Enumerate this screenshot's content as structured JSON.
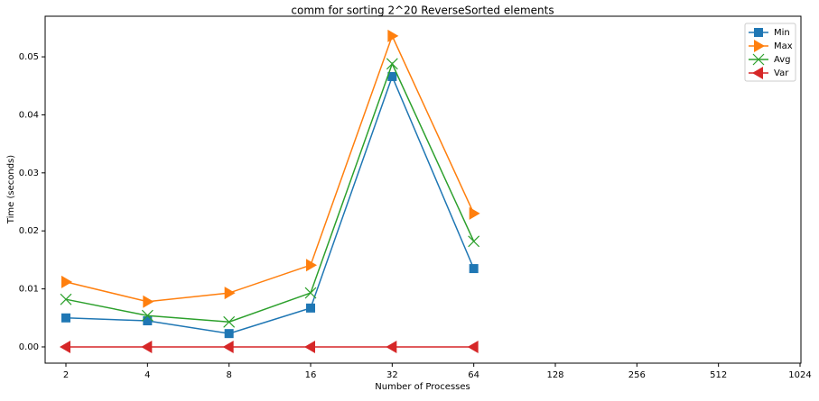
{
  "chart_data": {
    "type": "line",
    "title": "comm for sorting 2^20 ReverseSorted elements",
    "x_label": "Number of Processes",
    "y_label": "Time (seconds)",
    "categories": [
      "2",
      "4",
      "8",
      "16",
      "32",
      "64",
      "128",
      "256",
      "512",
      "1024"
    ],
    "series": [
      {
        "name": "Min",
        "color": "#1f77b4",
        "marker": "square",
        "values": [
          0.005,
          0.0045,
          0.0023,
          0.0067,
          0.0466,
          0.0135,
          null,
          null,
          null,
          null
        ]
      },
      {
        "name": "Max",
        "color": "#ff7f0e",
        "marker": "triangle-right",
        "values": [
          0.0112,
          0.0078,
          0.0093,
          0.0141,
          0.0536,
          0.023,
          null,
          null,
          null,
          null
        ]
      },
      {
        "name": "Avg",
        "color": "#2ca02c",
        "marker": "x",
        "values": [
          0.0082,
          0.0054,
          0.0043,
          0.0093,
          0.0488,
          0.0182,
          null,
          null,
          null,
          null
        ]
      },
      {
        "name": "Var",
        "color": "#d62728",
        "marker": "triangle-left",
        "values": [
          0,
          0,
          0,
          0,
          0,
          0,
          null,
          null,
          null,
          null
        ]
      }
    ],
    "ylim": [
      -0.0028,
      0.057
    ],
    "yticks": [
      {
        "value": 0,
        "label": "0.00"
      },
      0.01,
      0.02,
      0.03,
      0.04,
      0.05
    ],
    "legend": "upper right"
  }
}
